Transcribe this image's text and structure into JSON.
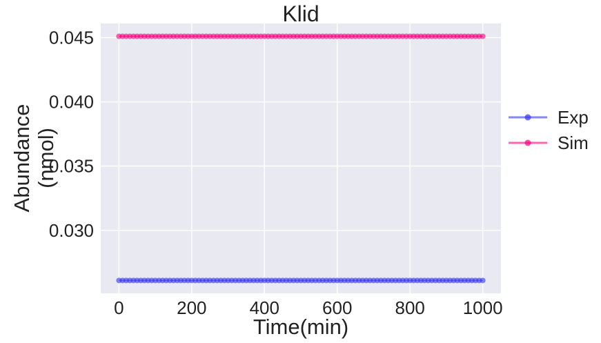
{
  "chart_data": {
    "type": "scatter",
    "title": "Klid",
    "xlabel": "Time(min)",
    "ylabel_lines": [
      "Abundance",
      "(nmol)"
    ],
    "xlim": [
      -50,
      1050
    ],
    "ylim": [
      0.0251,
      0.0461
    ],
    "xticks": [
      0,
      200,
      400,
      600,
      800,
      1000
    ],
    "xtick_labels": [
      "0",
      "200",
      "400",
      "600",
      "800",
      "1000"
    ],
    "yticks": [
      0.03,
      0.035,
      0.04,
      0.045
    ],
    "ytick_labels": [
      "0.030",
      "0.035",
      "0.040",
      "0.045"
    ],
    "grid": true,
    "legend_position": "outside-right",
    "series": [
      {
        "name": "Exp",
        "color": "#3333ee",
        "x_start": 0,
        "x_end": 1000,
        "x_step": 10,
        "y": 0.0261
      },
      {
        "name": "Sim",
        "color": "#f5007f",
        "x_start": 0,
        "x_end": 1000,
        "x_step": 10,
        "y": 0.0451
      }
    ]
  },
  "colors": {
    "plot_background": "#e9e9f1",
    "grid": "#ffffff"
  }
}
